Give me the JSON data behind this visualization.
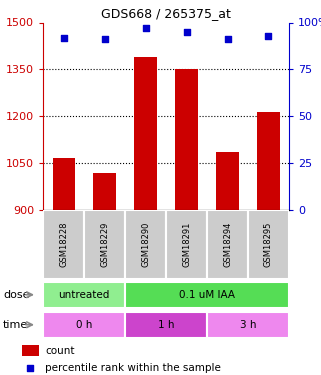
{
  "title": "GDS668 / 265375_at",
  "samples": [
    "GSM18228",
    "GSM18229",
    "GSM18290",
    "GSM18291",
    "GSM18294",
    "GSM18295"
  ],
  "bar_values": [
    1065,
    1020,
    1390,
    1350,
    1085,
    1215
  ],
  "dot_values": [
    92,
    91,
    97,
    95,
    91,
    93
  ],
  "ylim_left": [
    900,
    1500
  ],
  "ylim_right": [
    0,
    100
  ],
  "yticks_left": [
    900,
    1050,
    1200,
    1350,
    1500
  ],
  "yticks_right": [
    0,
    25,
    50,
    75,
    100
  ],
  "bar_color": "#cc0000",
  "dot_color": "#0000cc",
  "bar_bottom": 900,
  "dose_labels": [
    {
      "text": "untreated",
      "start": 0,
      "end": 2,
      "color": "#90ee90"
    },
    {
      "text": "0.1 uM IAA",
      "start": 2,
      "end": 6,
      "color": "#55dd55"
    }
  ],
  "time_labels": [
    {
      "text": "0 h",
      "start": 0,
      "end": 2,
      "color": "#ee88ee"
    },
    {
      "text": "1 h",
      "start": 2,
      "end": 4,
      "color": "#cc44cc"
    },
    {
      "text": "3 h",
      "start": 4,
      "end": 6,
      "color": "#ee88ee"
    }
  ],
  "legend_count_color": "#cc0000",
  "legend_dot_color": "#0000cc",
  "tick_color_left": "#cc0000",
  "tick_color_right": "#0000cc",
  "sample_box_color": "#cccccc",
  "dose_arrow_label": "dose",
  "time_arrow_label": "time"
}
